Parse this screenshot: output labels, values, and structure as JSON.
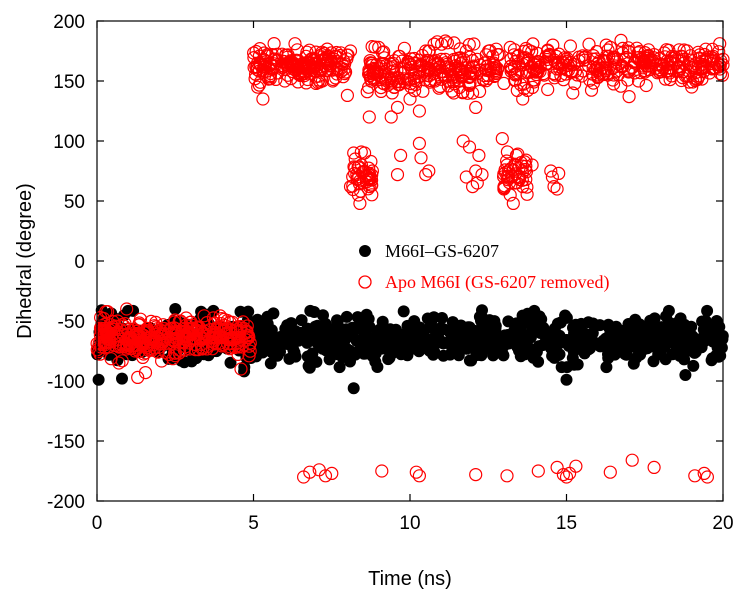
{
  "chart_data": {
    "type": "scatter",
    "title": "",
    "xlabel": "Time (ns)",
    "ylabel": "Dihedral (degree)",
    "xlim": [
      0,
      20
    ],
    "ylim": [
      -200,
      200
    ],
    "x_ticks": [
      0,
      5,
      10,
      15,
      20
    ],
    "y_ticks": [
      -200,
      -150,
      -100,
      -50,
      0,
      50,
      100,
      150,
      200
    ],
    "x_tick_labels": [
      "0",
      "5",
      "10",
      "15",
      "20"
    ],
    "y_tick_labels": [
      "-200",
      "-150",
      "-100",
      "-50",
      "0",
      "50",
      "100",
      "150",
      "200"
    ],
    "grid": false,
    "legend_position": "center-right",
    "series": [
      {
        "name": "M66I–GS-6207",
        "marker": "filled-circle",
        "color": "#000000",
        "generator": {
          "x_range": [
            0,
            20
          ],
          "center": -65,
          "spread": 9,
          "count": 900,
          "seed": 7
        },
        "points": [
          [
            0.05,
            -99
          ],
          [
            0.15,
            -41
          ],
          [
            0.8,
            -98
          ],
          [
            2.5,
            -40
          ],
          [
            8.2,
            -106
          ],
          [
            9.8,
            -42
          ],
          [
            12.3,
            -41
          ],
          [
            13.4,
            -52
          ],
          [
            14.0,
            -48
          ],
          [
            15.0,
            -99
          ],
          [
            15.7,
            -51
          ],
          [
            19.8,
            -50
          ],
          [
            18.8,
            -95
          ],
          [
            6.8,
            -89
          ],
          [
            4.7,
            -92
          ]
        ]
      },
      {
        "name": "Apo M66I (GS-6207 removed)",
        "marker": "open-circle",
        "color": "#ff0000",
        "generator": {
          "x_range": [
            0,
            4.9
          ],
          "center": -63,
          "spread": 8,
          "count": 340,
          "seed": 11
        },
        "points": [
          [
            0.7,
            -85
          ],
          [
            0.95,
            -40
          ],
          [
            1.3,
            -97
          ],
          [
            1.55,
            -93
          ],
          [
            2.3,
            -78
          ],
          [
            4.6,
            -90
          ],
          [
            5.2,
            165
          ],
          [
            5.3,
            135
          ],
          [
            5.6,
            172
          ],
          [
            6.0,
            150
          ],
          [
            6.4,
            176
          ],
          [
            6.7,
            162
          ],
          [
            7.0,
            148
          ],
          [
            7.4,
            170
          ],
          [
            7.8,
            158
          ],
          [
            8.0,
            138
          ],
          [
            8.1,
            175
          ],
          [
            8.2,
            90
          ],
          [
            8.3,
            72
          ],
          [
            8.35,
            55
          ],
          [
            8.4,
            48
          ],
          [
            8.45,
            80
          ],
          [
            8.5,
            65
          ],
          [
            8.55,
            90
          ],
          [
            8.6,
            70
          ],
          [
            8.7,
            62
          ],
          [
            8.8,
            75
          ],
          [
            8.1,
            62
          ],
          [
            8.25,
            85
          ],
          [
            8.7,
            120
          ],
          [
            9.0,
            178
          ],
          [
            9.2,
            155
          ],
          [
            9.4,
            120
          ],
          [
            9.5,
            145
          ],
          [
            9.6,
            128
          ],
          [
            9.8,
            160
          ],
          [
            10.0,
            135
          ],
          [
            10.2,
            150
          ],
          [
            10.3,
            125
          ],
          [
            10.5,
            175
          ],
          [
            10.8,
            150
          ],
          [
            11.0,
            168
          ],
          [
            11.4,
            140
          ],
          [
            11.8,
            175
          ],
          [
            9.6,
            72
          ],
          [
            9.7,
            88
          ],
          [
            10.3,
            98
          ],
          [
            10.35,
            86
          ],
          [
            10.5,
            72
          ],
          [
            10.6,
            75
          ],
          [
            11.7,
            100
          ],
          [
            11.8,
            70
          ],
          [
            11.9,
            95
          ],
          [
            12.0,
            62
          ],
          [
            12.1,
            75
          ],
          [
            12.2,
            88
          ],
          [
            12.3,
            72
          ],
          [
            12.15,
            65
          ],
          [
            12.0,
            140
          ],
          [
            12.1,
            128
          ],
          [
            12.4,
            165
          ],
          [
            12.8,
            172
          ],
          [
            13.0,
            148
          ],
          [
            13.2,
            178
          ],
          [
            13.6,
            135
          ],
          [
            12.95,
            102
          ],
          [
            13.0,
            60
          ],
          [
            13.1,
            80
          ],
          [
            13.15,
            75
          ],
          [
            13.2,
            55
          ],
          [
            13.3,
            48
          ],
          [
            13.35,
            65
          ],
          [
            13.4,
            88
          ],
          [
            13.5,
            70
          ],
          [
            13.55,
            82
          ],
          [
            13.6,
            62
          ],
          [
            13.7,
            68
          ],
          [
            13.9,
            80
          ],
          [
            14.4,
            175
          ],
          [
            14.7,
            160
          ],
          [
            15.2,
            140
          ],
          [
            15.6,
            170
          ],
          [
            16.0,
            155
          ],
          [
            16.4,
            178
          ],
          [
            16.8,
            162
          ],
          [
            17.0,
            137
          ],
          [
            17.3,
            150
          ],
          [
            17.8,
            172
          ],
          [
            18.2,
            158
          ],
          [
            18.6,
            176
          ],
          [
            19.0,
            145
          ],
          [
            19.5,
            170
          ],
          [
            19.9,
            160
          ],
          [
            14.5,
            75
          ],
          [
            14.55,
            70
          ],
          [
            14.6,
            62
          ],
          [
            14.7,
            60
          ],
          [
            14.75,
            73
          ],
          [
            6.6,
            -180
          ],
          [
            6.8,
            -176
          ],
          [
            7.1,
            -174
          ],
          [
            7.3,
            -179
          ],
          [
            7.5,
            -177
          ],
          [
            9.1,
            -175
          ],
          [
            10.2,
            -176
          ],
          [
            10.3,
            -179
          ],
          [
            12.1,
            -178
          ],
          [
            13.1,
            -179
          ],
          [
            14.1,
            -175
          ],
          [
            14.7,
            -172
          ],
          [
            14.9,
            -178
          ],
          [
            15.0,
            -180
          ],
          [
            15.1,
            -177
          ],
          [
            15.3,
            -171
          ],
          [
            16.4,
            -176
          ],
          [
            17.1,
            -166
          ],
          [
            17.8,
            -172
          ],
          [
            19.1,
            -179
          ],
          [
            19.4,
            -177
          ],
          [
            19.5,
            -180
          ]
        ],
        "clusters": [
          {
            "x_range": [
              5.0,
              8.05
            ],
            "center": 163,
            "spread": 7,
            "count": 190,
            "seed": 21
          },
          {
            "x_range": [
              8.6,
              11.9
            ],
            "center": 160,
            "spread": 9,
            "count": 200,
            "seed": 23
          },
          {
            "x_range": [
              11.9,
              12.9
            ],
            "center": 160,
            "spread": 8,
            "count": 45,
            "seed": 25
          },
          {
            "x_range": [
              13.2,
              20.0
            ],
            "center": 163,
            "spread": 8,
            "count": 330,
            "seed": 27
          },
          {
            "x_range": [
              8.15,
              8.8
            ],
            "center": 70,
            "spread": 8,
            "count": 35,
            "seed": 29
          },
          {
            "x_range": [
              12.9,
              13.75
            ],
            "center": 72,
            "spread": 9,
            "count": 35,
            "seed": 31
          }
        ]
      }
    ]
  }
}
